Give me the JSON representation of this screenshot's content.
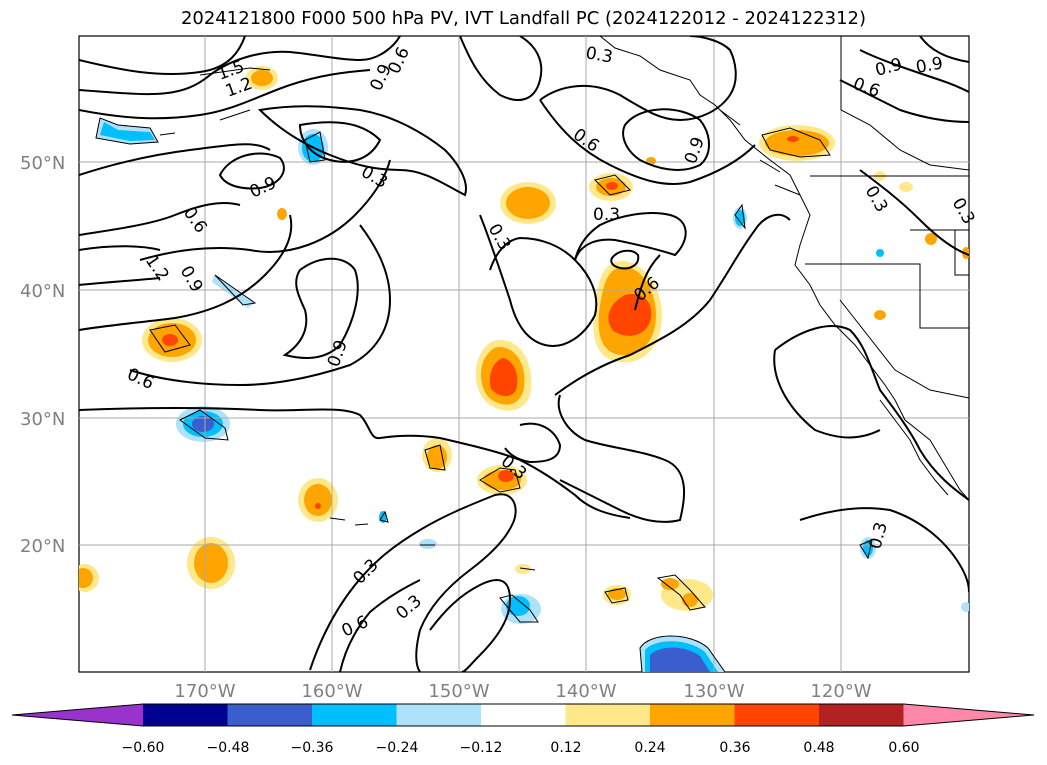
{
  "title": "2024121800 F000 500 hPa PV, IVT Landfall PC (2024122012 - 2024122312)",
  "lat_labels": [
    "50°N",
    "40°N",
    "30°N",
    "20°N"
  ],
  "lon_labels": [
    "170°W",
    "160°W",
    "150°W",
    "140°W",
    "130°W",
    "120°W"
  ],
  "contour_labels": [
    "1.5",
    "1.2",
    "0.9",
    "0.6",
    "0.3",
    "0.3",
    "0.6",
    "0.9",
    "0.9",
    "0.6",
    "0.9",
    "0.9",
    "0.6",
    "1.2",
    "0.9",
    "0.6",
    "0.3",
    "0.3",
    "0.6",
    "0.9",
    "0.3",
    "0.3",
    "0.3",
    "0.6",
    "0.3",
    "0.3",
    "0.3"
  ],
  "colorbar": {
    "ticks": [
      "−0.60",
      "−0.48",
      "−0.36",
      "−0.24",
      "−0.12",
      "0.12",
      "0.24",
      "0.36",
      "0.48",
      "0.60"
    ],
    "colors": [
      "#9933cc",
      "#000090",
      "#3a5fcd",
      "#00bfff",
      "#aee2fb",
      "#ffffff",
      "#ffe88a",
      "#ffa500",
      "#ff4500",
      "#b22222",
      "#ff88aa"
    ]
  },
  "fill_colors": {
    "light_yellow": "#ffe88a",
    "orange": "#ffa500",
    "red_orange": "#ff4500",
    "crimson": "#b22222",
    "light_blue": "#aee2fb",
    "deep_sky_blue": "#00bfff",
    "royal_blue": "#3a5fcd"
  }
}
